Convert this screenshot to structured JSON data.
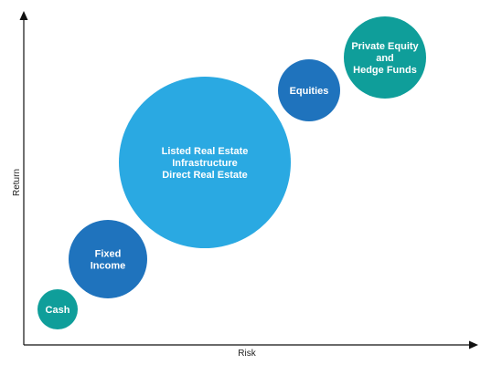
{
  "axes": {
    "x_label": "Risk",
    "y_label": "Return"
  },
  "assets": [
    {
      "id": "cash",
      "lines": [
        "Cash"
      ],
      "color": "#0f9e9a"
    },
    {
      "id": "fixed-income",
      "lines": [
        "Fixed",
        "Income"
      ],
      "color": "#1f73bd"
    },
    {
      "id": "real-estate",
      "lines": [
        "Listed Real Estate",
        "Infrastructure",
        "Direct Real Estate"
      ],
      "color": "#2aa9e2"
    },
    {
      "id": "equities",
      "lines": [
        "Equities"
      ],
      "color": "#1f73bd"
    },
    {
      "id": "private-equity",
      "lines": [
        "Private Equity",
        "and",
        "Hedge Funds"
      ],
      "color": "#0f9e9a"
    }
  ]
}
